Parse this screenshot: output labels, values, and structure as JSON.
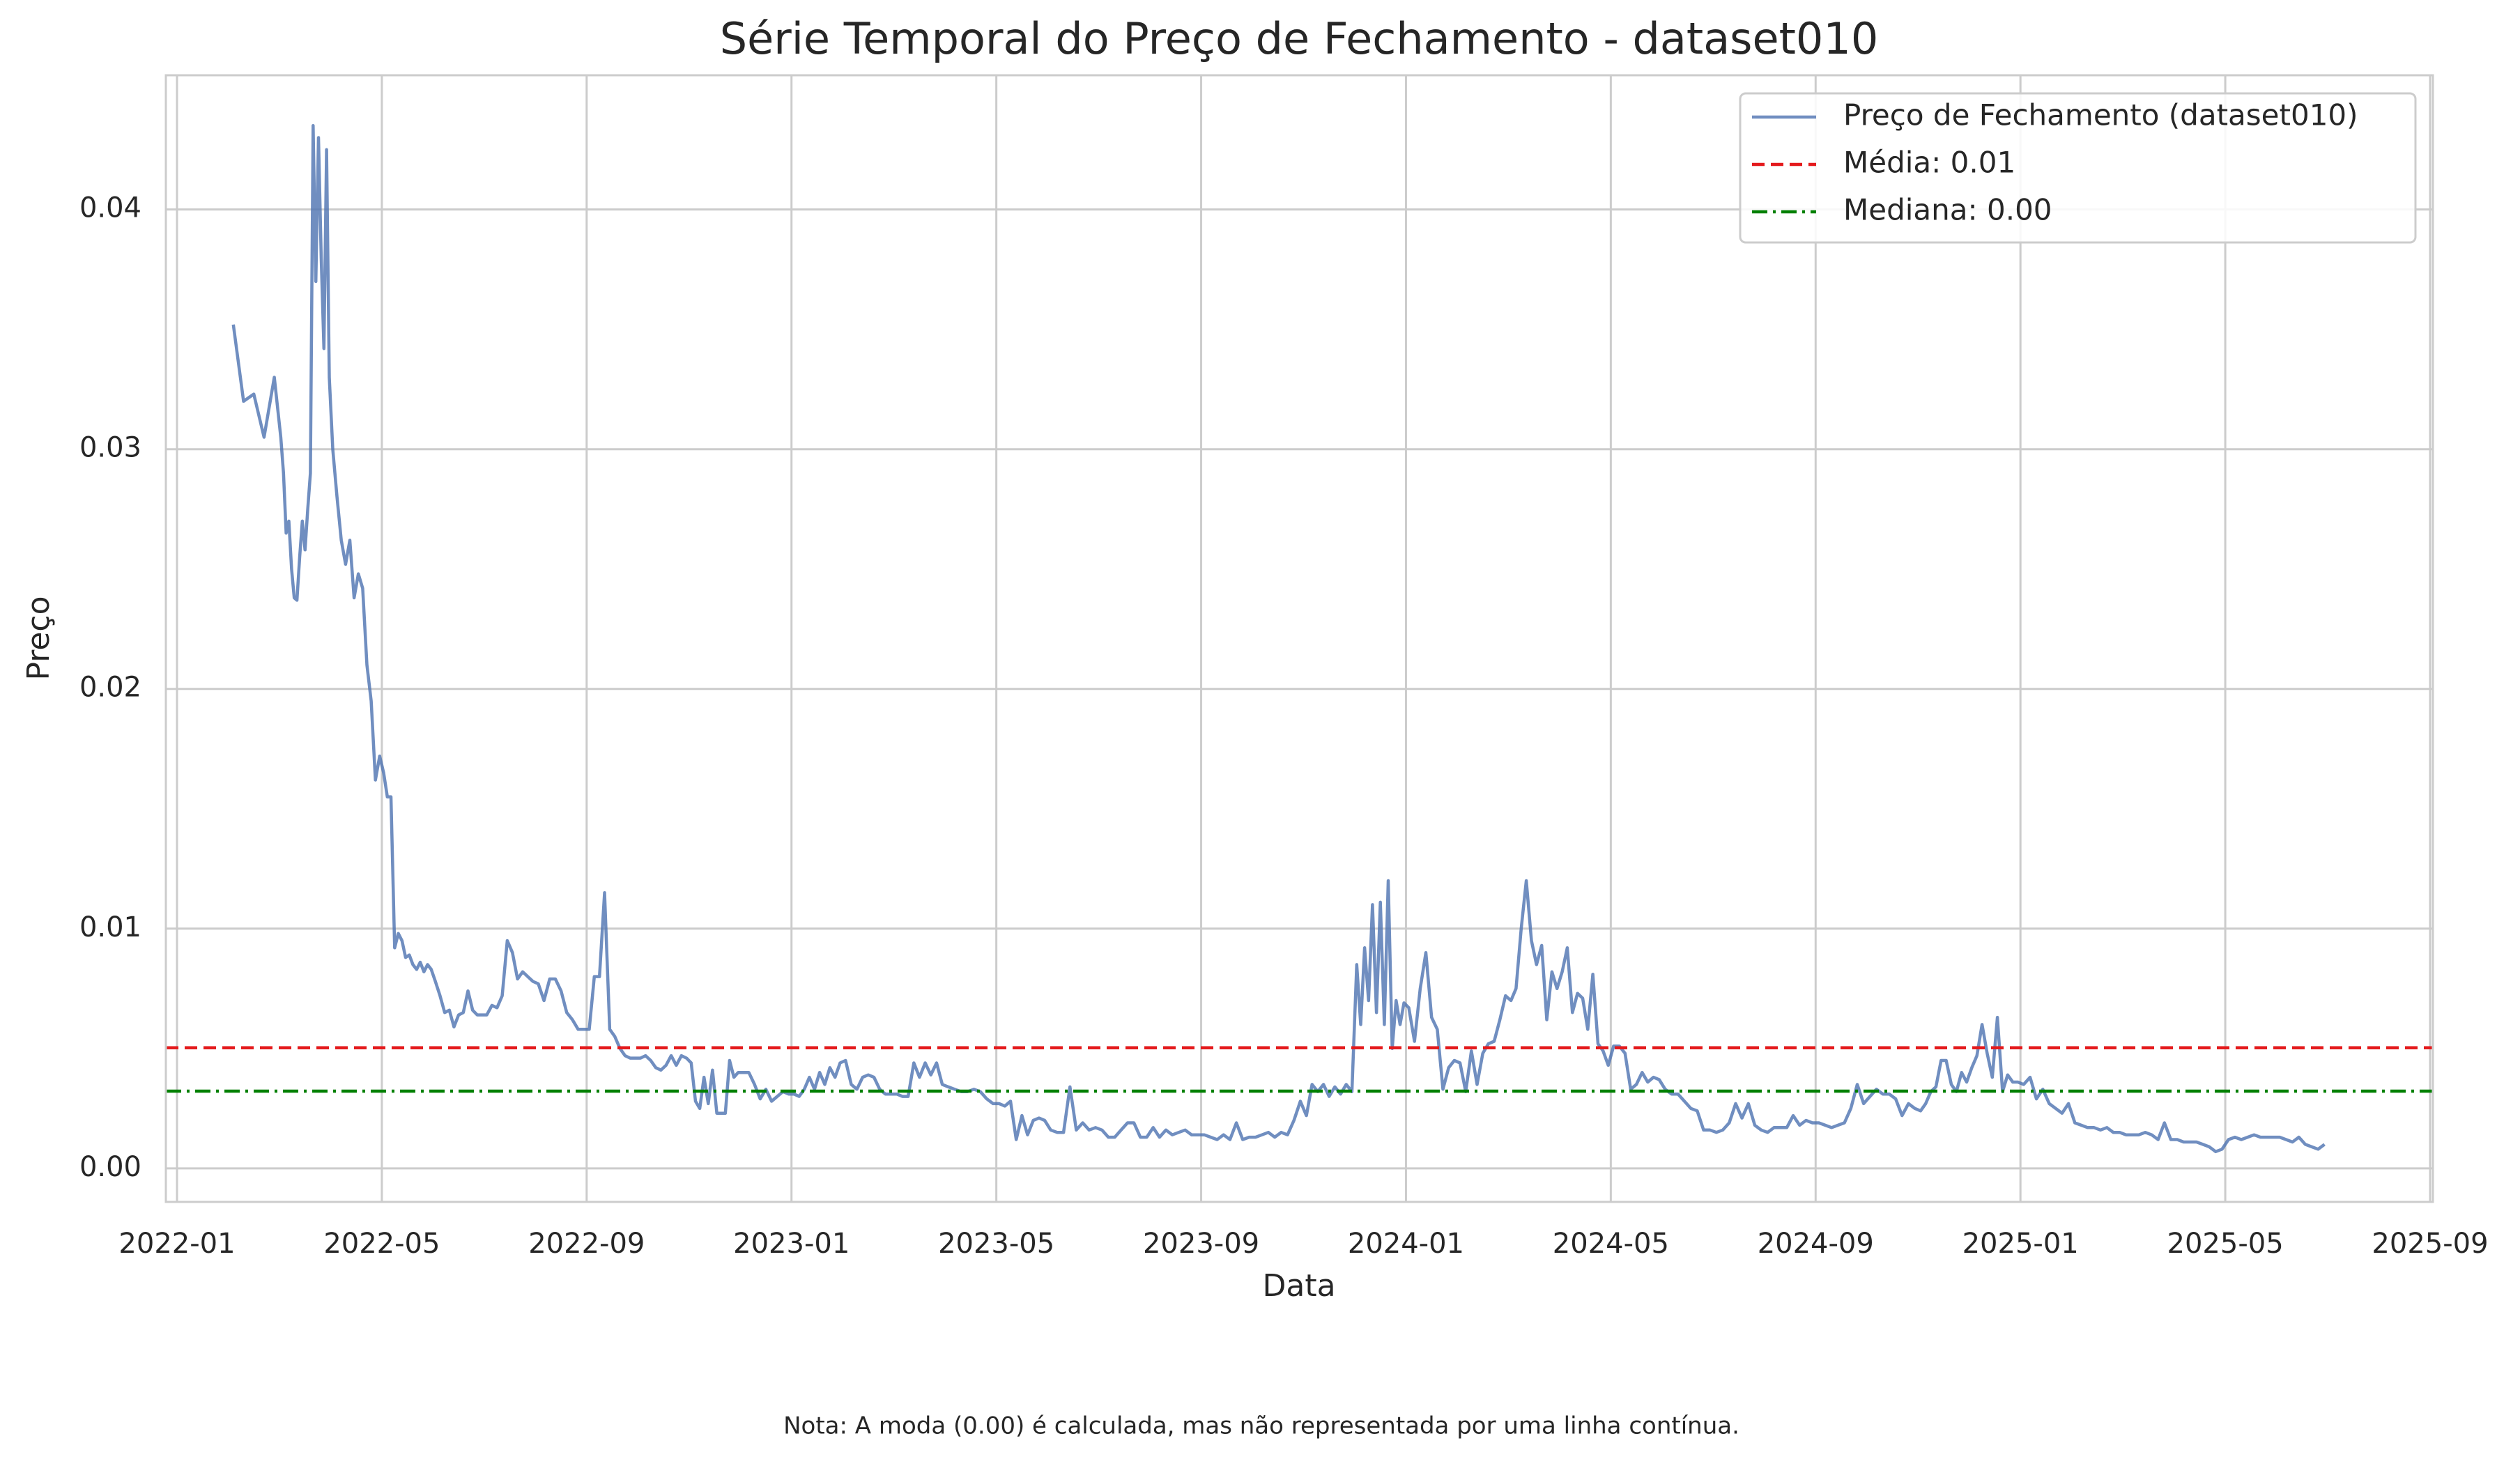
{
  "chart_data": {
    "type": "line",
    "title": "Série Temporal do Preço de Fechamento - dataset010",
    "xlabel": "Data",
    "ylabel": "Preço",
    "note": "Nota: A moda (0.00) é calculada, mas não representada por uma linha contínua.",
    "grid": true,
    "legend": "upper right",
    "xlim": [
      "2022-01",
      "2025-09"
    ],
    "xticks": [
      "2022-01",
      "2022-05",
      "2022-09",
      "2023-01",
      "2023-05",
      "2023-09",
      "2024-01",
      "2024-05",
      "2024-09",
      "2025-01",
      "2025-05",
      "2025-09"
    ],
    "ylim": [
      -0.0014,
      0.0456
    ],
    "yticks": [
      {
        "value": 0,
        "label": "0.00"
      },
      0.01,
      0.02,
      0.03,
      0.04
    ],
    "x": [
      "2022-02",
      "2022-02",
      "2022-02",
      "2022-02",
      "2022-02",
      "2022-03",
      "2022-03",
      "2022-03",
      "2022-03",
      "2022-03",
      "2022-03",
      "2022-03",
      "2022-03",
      "2022-03",
      "2022-03",
      "2022-03",
      "2022-03",
      "2022-03",
      "2022-03",
      "2022-03",
      "2022-03",
      "2022-03",
      "2022-03",
      "2022-03",
      "2022-04",
      "2022-04",
      "2022-04",
      "2022-04",
      "2022-04",
      "2022-04",
      "2022-04",
      "2022-04",
      "2022-04",
      "2022-04",
      "2022-04",
      "2022-04",
      "2022-05",
      "2022-05",
      "2022-05",
      "2022-05",
      "2022-05",
      "2022-05",
      "2022-05",
      "2022-05",
      "2022-05",
      "2022-05",
      "2022-05",
      "2022-05",
      "2022-05",
      "2022-05",
      "2022-06",
      "2022-06",
      "2022-06",
      "2022-06",
      "2022-06",
      "2022-06",
      "2022-06",
      "2022-06",
      "2022-06",
      "2022-06",
      "2022-06",
      "2022-07",
      "2022-07",
      "2022-07",
      "2022-07",
      "2022-07",
      "2022-07",
      "2022-07",
      "2022-07",
      "2022-07",
      "2022-07",
      "2022-08",
      "2022-08",
      "2022-08",
      "2022-08",
      "2022-08",
      "2022-08",
      "2022-08",
      "2022-08",
      "2022-08",
      "2022-09",
      "2022-09",
      "2022-09",
      "2022-09",
      "2022-09",
      "2022-09",
      "2022-09",
      "2022-09",
      "2022-09",
      "2022-09",
      "2022-10",
      "2022-10",
      "2022-10",
      "2022-10",
      "2022-10",
      "2022-10",
      "2022-10",
      "2022-10",
      "2022-10",
      "2022-10",
      "2022-11",
      "2022-11",
      "2022-11",
      "2022-11",
      "2022-11",
      "2022-11",
      "2022-11",
      "2022-11",
      "2022-11",
      "2022-11",
      "2022-11",
      "2022-11",
      "2022-12",
      "2022-12",
      "2022-12",
      "2022-12",
      "2022-12",
      "2022-12",
      "2022-12",
      "2022-12",
      "2022-12",
      "2023-01",
      "2023-01",
      "2023-01",
      "2023-01",
      "2023-01",
      "2023-01",
      "2023-01",
      "2023-01",
      "2023-01",
      "2023-01",
      "2023-02",
      "2023-02",
      "2023-02",
      "2023-02",
      "2023-02",
      "2023-02",
      "2023-02",
      "2023-02",
      "2023-02",
      "2023-03",
      "2023-03",
      "2023-03",
      "2023-03",
      "2023-03",
      "2023-03",
      "2023-03",
      "2023-03",
      "2023-03",
      "2023-04",
      "2023-04",
      "2023-04",
      "2023-04",
      "2023-04",
      "2023-04",
      "2023-04",
      "2023-04",
      "2023-05",
      "2023-05",
      "2023-05",
      "2023-05",
      "2023-05",
      "2023-05",
      "2023-05",
      "2023-05",
      "2023-05",
      "2023-06",
      "2023-06",
      "2023-06",
      "2023-06",
      "2023-06",
      "2023-06",
      "2023-06",
      "2023-06",
      "2023-07",
      "2023-07",
      "2023-07",
      "2023-07",
      "2023-07",
      "2023-07",
      "2023-07",
      "2023-07",
      "2023-08",
      "2023-08",
      "2023-08",
      "2023-08",
      "2023-08",
      "2023-08",
      "2023-08",
      "2023-08",
      "2023-09",
      "2023-09",
      "2023-09",
      "2023-09",
      "2023-09",
      "2023-09",
      "2023-09",
      "2023-09",
      "2023-10",
      "2023-10",
      "2023-10",
      "2023-10",
      "2023-10",
      "2023-10",
      "2023-10",
      "2023-10",
      "2023-11",
      "2023-11",
      "2023-11",
      "2023-11",
      "2023-11",
      "2023-11",
      "2023-11",
      "2023-11",
      "2023-11",
      "2023-12",
      "2023-12",
      "2023-12",
      "2023-12",
      "2023-12",
      "2023-12",
      "2023-12",
      "2023-12",
      "2023-12",
      "2023-12",
      "2023-12",
      "2023-12",
      "2023-12",
      "2024-01",
      "2024-01",
      "2024-01",
      "2024-01",
      "2024-01",
      "2024-01",
      "2024-01",
      "2024-01",
      "2024-01",
      "2024-02",
      "2024-02",
      "2024-02",
      "2024-02",
      "2024-02",
      "2024-02",
      "2024-02",
      "2024-02",
      "2024-02",
      "2024-03",
      "2024-03",
      "2024-03",
      "2024-03",
      "2024-03",
      "2024-03",
      "2024-03",
      "2024-03",
      "2024-03",
      "2024-03",
      "2024-04",
      "2024-04",
      "2024-04",
      "2024-04",
      "2024-04",
      "2024-04",
      "2024-04",
      "2024-04",
      "2024-04",
      "2024-04",
      "2024-05",
      "2024-05",
      "2024-05",
      "2024-05",
      "2024-05",
      "2024-05",
      "2024-05",
      "2024-05",
      "2024-05",
      "2024-06",
      "2024-06",
      "2024-06",
      "2024-06",
      "2024-06",
      "2024-06",
      "2024-06",
      "2024-06",
      "2024-07",
      "2024-07",
      "2024-07",
      "2024-07",
      "2024-07",
      "2024-07",
      "2024-07",
      "2024-07",
      "2024-08",
      "2024-08",
      "2024-08",
      "2024-08",
      "2024-08",
      "2024-08",
      "2024-08",
      "2024-08",
      "2024-09",
      "2024-09",
      "2024-09",
      "2024-09",
      "2024-09",
      "2024-09",
      "2024-09",
      "2024-09",
      "2024-10",
      "2024-10",
      "2024-10",
      "2024-10",
      "2024-10",
      "2024-10",
      "2024-10",
      "2024-10",
      "2024-11",
      "2024-11",
      "2024-11",
      "2024-11",
      "2024-11",
      "2024-11",
      "2024-11",
      "2024-11",
      "2024-11",
      "2024-11",
      "2024-12",
      "2024-12",
      "2024-12",
      "2024-12",
      "2024-12",
      "2024-12",
      "2024-12",
      "2024-12",
      "2024-12",
      "2024-12",
      "2025-01",
      "2025-01",
      "2025-01",
      "2025-01",
      "2025-01",
      "2025-01",
      "2025-01",
      "2025-01",
      "2025-02",
      "2025-02",
      "2025-02",
      "2025-02",
      "2025-02",
      "2025-02",
      "2025-02",
      "2025-02",
      "2025-03",
      "2025-03",
      "2025-03",
      "2025-03",
      "2025-03",
      "2025-03",
      "2025-03",
      "2025-03",
      "2025-04",
      "2025-04",
      "2025-04",
      "2025-04",
      "2025-04",
      "2025-04",
      "2025-04",
      "2025-04",
      "2025-05",
      "2025-05",
      "2025-05",
      "2025-05",
      "2025-05",
      "2025-05",
      "2025-05",
      "2025-05",
      "2025-06",
      "2025-06",
      "2025-06",
      "2025-06",
      "2025-06",
      "2025-06",
      "2025-06",
      "2025-06"
    ],
    "series": [
      {
        "name": "Preço de Fechamento (dataset010)",
        "color": "#4c72b0",
        "values": [
          0.0352,
          0.032,
          0.0323,
          0.0305,
          0.033,
          0.0305,
          0.029,
          0.0265,
          0.027,
          0.025,
          0.0238,
          0.0237,
          0.0255,
          0.027,
          0.0258,
          0.0275,
          0.029,
          0.0435,
          0.037,
          0.043,
          0.038,
          0.0342,
          0.0425,
          0.033,
          0.03,
          0.028,
          0.0262,
          0.0252,
          0.0262,
          0.0238,
          0.0248,
          0.0242,
          0.021,
          0.0195,
          0.0162,
          0.0172,
          0.0165,
          0.0155,
          0.0155,
          0.0092,
          0.0098,
          0.0095,
          0.0088,
          0.0089,
          0.0085,
          0.0083,
          0.0086,
          0.0082,
          0.0085,
          0.0083,
          0.0078,
          0.0072,
          0.0065,
          0.0066,
          0.0059,
          0.0064,
          0.0065,
          0.0074,
          0.0066,
          0.0064,
          0.0064,
          0.0064,
          0.0068,
          0.0067,
          0.0072,
          0.0095,
          0.009,
          0.0079,
          0.0082,
          0.008,
          0.0078,
          0.0077,
          0.007,
          0.0079,
          0.0079,
          0.0074,
          0.0065,
          0.0062,
          0.0058,
          0.0058,
          0.0058,
          0.008,
          0.008,
          0.0115,
          0.0058,
          0.0055,
          0.005,
          0.0047,
          0.0046,
          0.0046,
          0.0046,
          0.0047,
          0.0045,
          0.0042,
          0.0041,
          0.0043,
          0.0047,
          0.0043,
          0.0047,
          0.0046,
          0.0044,
          0.0028,
          0.0025,
          0.0038,
          0.0027,
          0.0041,
          0.0023,
          0.0023,
          0.0023,
          0.0045,
          0.0038,
          0.004,
          0.004,
          0.004,
          0.0035,
          0.0029,
          0.0033,
          0.0028,
          0.003,
          0.0032,
          0.0031,
          0.0031,
          0.003,
          0.0033,
          0.0038,
          0.0033,
          0.004,
          0.0035,
          0.0042,
          0.0038,
          0.0044,
          0.0045,
          0.0035,
          0.0033,
          0.0038,
          0.0039,
          0.0038,
          0.0033,
          0.0031,
          0.0031,
          0.0031,
          0.003,
          0.003,
          0.0044,
          0.0038,
          0.0044,
          0.0039,
          0.0044,
          0.0035,
          0.0034,
          0.0033,
          0.0032,
          0.0032,
          0.0033,
          0.0032,
          0.0029,
          0.0027,
          0.0027,
          0.0026,
          0.0028,
          0.0012,
          0.0022,
          0.0014,
          0.002,
          0.0021,
          0.002,
          0.0016,
          0.0015,
          0.0015,
          0.0034,
          0.0016,
          0.0019,
          0.0016,
          0.0017,
          0.0016,
          0.0013,
          0.0013,
          0.0016,
          0.0019,
          0.0019,
          0.0013,
          0.0013,
          0.0017,
          0.0013,
          0.0016,
          0.0014,
          0.0015,
          0.0016,
          0.0014,
          0.0014,
          0.0014,
          0.0013,
          0.0012,
          0.0014,
          0.0012,
          0.0019,
          0.0012,
          0.0013,
          0.0013,
          0.0014,
          0.0015,
          0.0013,
          0.0015,
          0.0014,
          0.002,
          0.0028,
          0.0022,
          0.0035,
          0.0032,
          0.0035,
          0.003,
          0.0034,
          0.0031,
          0.0035,
          0.0032,
          0.0085,
          0.006,
          0.0092,
          0.007,
          0.011,
          0.0065,
          0.0111,
          0.006,
          0.012,
          0.005,
          0.007,
          0.006,
          0.0069,
          0.0067,
          0.0053,
          0.0075,
          0.009,
          0.0063,
          0.0058,
          0.0033,
          0.0042,
          0.0045,
          0.0044,
          0.0032,
          0.0049,
          0.0035,
          0.0048,
          0.0052,
          0.0053,
          0.0062,
          0.0072,
          0.007,
          0.0075,
          0.01,
          0.012,
          0.0095,
          0.0085,
          0.0093,
          0.0062,
          0.0082,
          0.0075,
          0.0082,
          0.0092,
          0.0065,
          0.0073,
          0.0071,
          0.0058,
          0.0081,
          0.0052,
          0.0049,
          0.0043,
          0.0051,
          0.0051,
          0.0048,
          0.0033,
          0.0035,
          0.004,
          0.0036,
          0.0038,
          0.0037,
          0.0033,
          0.0031,
          0.0031,
          0.0028,
          0.0025,
          0.0024,
          0.0016,
          0.0016,
          0.0015,
          0.0016,
          0.0019,
          0.0027,
          0.0021,
          0.0027,
          0.0018,
          0.0016,
          0.0015,
          0.0017,
          0.0017,
          0.0017,
          0.0022,
          0.0018,
          0.002,
          0.0019,
          0.0019,
          0.0018,
          0.0017,
          0.0018,
          0.0019,
          0.0025,
          0.0035,
          0.0027,
          0.003,
          0.0033,
          0.0031,
          0.0031,
          0.0029,
          0.0022,
          0.0027,
          0.0025,
          0.0024,
          0.0027,
          0.0032,
          0.0034,
          0.0045,
          0.0045,
          0.0035,
          0.0032,
          0.004,
          0.0036,
          0.0042,
          0.0047,
          0.006,
          0.0048,
          0.0038,
          0.0063,
          0.0032,
          0.0039,
          0.0036,
          0.0036,
          0.0035,
          0.0038,
          0.0029,
          0.0033,
          0.0027,
          0.0025,
          0.0023,
          0.0027,
          0.0019,
          0.0018,
          0.0017,
          0.0017,
          0.0016,
          0.0017,
          0.0015,
          0.0015,
          0.0014,
          0.0014,
          0.0014,
          0.0015,
          0.0014,
          0.0012,
          0.0019,
          0.0012,
          0.0012,
          0.0011,
          0.0011,
          0.0011,
          0.001,
          0.0009,
          0.0007,
          0.0008,
          0.0012,
          0.0013,
          0.0012,
          0.0013,
          0.0014,
          0.0013,
          0.0013,
          0.0013,
          0.0013,
          0.0012,
          0.0011,
          0.0013,
          0.001,
          0.0009,
          0.0008,
          0.001
        ]
      }
    ],
    "reference_lines": [
      {
        "name": "Média: 0.01",
        "value": 0.00503,
        "color": "#e41a1c",
        "style": "dashed"
      },
      {
        "name": "Mediana: 0.00",
        "value": 0.00322,
        "color": "#008000",
        "style": "dashdot"
      }
    ]
  }
}
